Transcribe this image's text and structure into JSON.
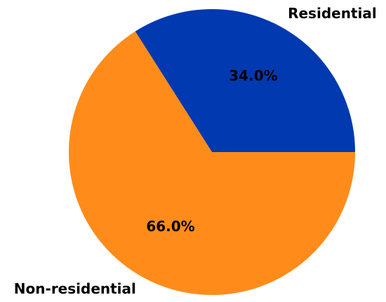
{
  "chart_data": {
    "type": "pie",
    "categories": [
      "Residential",
      "Non-residential"
    ],
    "values": [
      34.0,
      66.0
    ],
    "value_labels": [
      "34.0%",
      "66.0%"
    ],
    "colors": [
      "#0039b0",
      "#ff8c1a"
    ]
  }
}
